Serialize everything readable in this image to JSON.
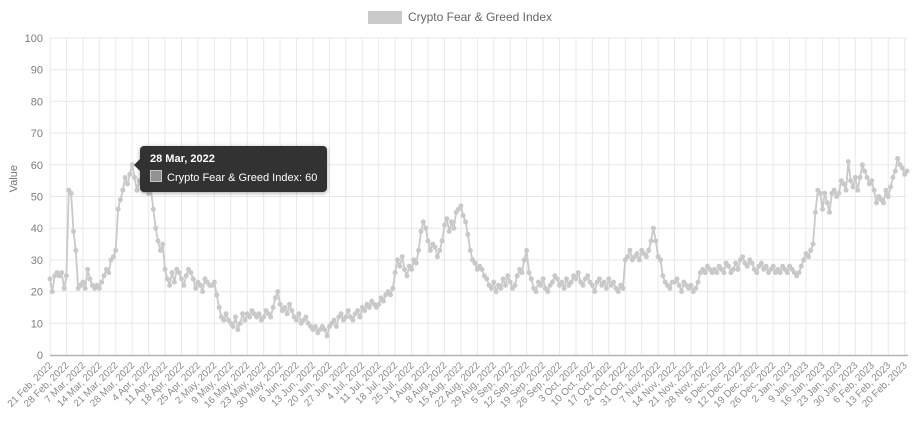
{
  "legend": {
    "label": "Crypto Fear & Greed Index",
    "swatch_color": "#c9c9c9"
  },
  "y_axis": {
    "title": "Value",
    "ticks": [
      0,
      10,
      20,
      30,
      40,
      50,
      60,
      70,
      80,
      90,
      100
    ]
  },
  "x_axis": {
    "tick_labels": [
      "21 Feb, 2022",
      "28 Feb, 2022",
      "7 Mar, 2022",
      "14 Mar, 2022",
      "21 Mar, 2022",
      "28 Mar, 2022",
      "4 Apr, 2022",
      "11 Apr, 2022",
      "18 Apr, 2022",
      "25 Apr, 2022",
      "2 May, 2022",
      "9 May, 2022",
      "16 May, 2022",
      "23 May, 2022",
      "30 May, 2022",
      "6 Jun, 2022",
      "13 Jun, 2022",
      "20 Jun, 2022",
      "27 Jun, 2022",
      "4 Jul, 2022",
      "11 Jul, 2022",
      "18 Jul, 2022",
      "25 Jul, 2022",
      "1 Aug, 2022",
      "8 Aug, 2022",
      "15 Aug, 2022",
      "22 Aug, 2022",
      "29 Aug, 2022",
      "5 Sep, 2022",
      "12 Sep, 2022",
      "19 Sep, 2022",
      "26 Sep, 2022",
      "3 Oct, 2022",
      "10 Oct, 2022",
      "17 Oct, 2022",
      "24 Oct, 2022",
      "31 Oct, 2022",
      "7 Nov, 2022",
      "14 Nov, 2022",
      "21 Nov, 2022",
      "28 Nov, 2022",
      "5 Dec, 2022",
      "12 Dec, 2022",
      "19 Dec, 2022",
      "26 Dec, 2022",
      "2 Jan, 2023",
      "9 Jan, 2023",
      "16 Jan, 2023",
      "23 Jan, 2023",
      "30 Jan, 2023",
      "6 Feb, 2023",
      "13 Feb, 2023",
      "20 Feb, 2023"
    ],
    "tick_interval_days": 7
  },
  "tooltip": {
    "title": "28 Mar, 2022",
    "series": "Crypto Fear & Greed Index",
    "value": 60,
    "value_line": "Crypto Fear & Greed Index: 60",
    "swatch_color": "#919191"
  },
  "colors": {
    "line": "#c9c9c9",
    "grid": "#e8e8e8",
    "axis_line": "#b3b3b3",
    "tick_label": "#8b8b8b",
    "tooltip_bg": "#2a2a2a"
  },
  "chart_data": {
    "type": "line",
    "title": "Crypto Fear & Greed Index",
    "ylabel": "Value",
    "ylim": [
      0,
      100
    ],
    "grid": true,
    "legend_position": "top-center",
    "x_start": "21 Feb, 2022",
    "x_end": "21 Feb, 2023",
    "frequency": "daily",
    "series": [
      {
        "name": "Crypto Fear & Greed Index",
        "color": "#c9c9c9",
        "values": [
          24,
          20,
          25,
          26,
          25,
          26,
          21,
          25,
          52,
          51,
          39,
          33,
          21,
          22,
          23,
          21,
          27,
          24,
          22,
          21,
          22,
          21,
          23,
          25,
          27,
          26,
          30,
          31,
          33,
          46,
          49,
          52,
          56,
          54,
          57,
          60,
          56,
          52,
          55,
          54,
          52,
          56,
          51,
          52,
          46,
          40,
          36,
          33,
          35,
          27,
          24,
          22,
          26,
          23,
          27,
          26,
          24,
          22,
          25,
          27,
          26,
          24,
          21,
          23,
          22,
          20,
          24,
          23,
          22,
          22,
          23,
          19,
          15,
          12,
          11,
          13,
          11,
          10,
          9,
          12,
          8,
          10,
          13,
          11,
          13,
          12,
          14,
          13,
          12,
          13,
          11,
          12,
          14,
          13,
          12,
          15,
          18,
          20,
          16,
          14,
          15,
          13,
          16,
          14,
          12,
          11,
          13,
          10,
          11,
          12,
          10,
          9,
          8,
          9,
          7,
          8,
          9,
          8,
          6,
          9,
          10,
          11,
          9,
          12,
          13,
          11,
          12,
          14,
          12,
          11,
          13,
          14,
          12,
          15,
          14,
          16,
          15,
          17,
          16,
          15,
          16,
          18,
          17,
          19,
          20,
          19,
          21,
          26,
          30,
          28,
          31,
          27,
          25,
          28,
          27,
          30,
          29,
          33,
          39,
          42,
          40,
          36,
          33,
          35,
          34,
          31,
          33,
          36,
          41,
          43,
          39,
          42,
          40,
          45,
          46,
          47,
          44,
          42,
          38,
          33,
          30,
          29,
          27,
          28,
          27,
          25,
          24,
          22,
          21,
          23,
          20,
          22,
          21,
          24,
          22,
          25,
          23,
          21,
          22,
          25,
          27,
          26,
          30,
          33,
          26,
          24,
          21,
          20,
          23,
          22,
          24,
          21,
          20,
          22,
          23,
          25,
          24,
          22,
          23,
          21,
          24,
          22,
          23,
          25,
          24,
          26,
          23,
          22,
          24,
          25,
          23,
          22,
          20,
          23,
          24,
          22,
          23,
          21,
          24,
          22,
          23,
          21,
          20,
          22,
          21,
          30,
          31,
          33,
          30,
          31,
          32,
          30,
          33,
          32,
          31,
          33,
          36,
          40,
          36,
          31,
          30,
          25,
          23,
          22,
          21,
          23,
          23,
          24,
          22,
          20,
          23,
          22,
          21,
          22,
          20,
          21,
          23,
          26,
          27,
          26,
          28,
          27,
          26,
          27,
          26,
          28,
          27,
          26,
          29,
          28,
          26,
          27,
          29,
          27,
          30,
          31,
          29,
          28,
          30,
          29,
          27,
          26,
          28,
          29,
          27,
          28,
          26,
          27,
          28,
          26,
          27,
          26,
          28,
          27,
          26,
          28,
          27,
          26,
          25,
          26,
          28,
          30,
          32,
          31,
          33,
          35,
          45,
          52,
          51,
          46,
          51,
          48,
          45,
          51,
          52,
          50,
          51,
          55,
          54,
          52,
          61,
          55,
          53,
          56,
          52,
          56,
          60,
          58,
          56,
          54,
          55,
          52,
          48,
          50,
          49,
          48,
          52,
          50,
          53,
          56,
          58,
          62,
          60,
          59,
          57,
          58
        ]
      }
    ]
  }
}
